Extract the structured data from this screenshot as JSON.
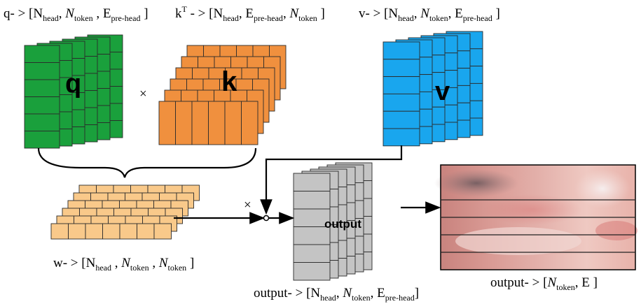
{
  "labels": {
    "q": {
      "prefix": "q- > [N",
      "s1": "head",
      "comma1": ", ",
      "n": "N",
      "s2": "token",
      "comma2": " , E",
      "s3": "pre-head",
      "close": " ]"
    },
    "k": {
      "prefix": "k",
      "sup": "T",
      "mid": " - > [N",
      "s1": "head",
      "comma1": ", E",
      "s2": "pre-head",
      "comma2": ", ",
      "n": "N",
      "s3": "token",
      "close": " ]"
    },
    "v": {
      "prefix": "v- > [N",
      "s1": "head",
      "comma1": ", ",
      "n": "N",
      "s2": "token",
      "comma2": ", E",
      "s3": "pre-head",
      "close": " ]"
    },
    "w": {
      "prefix": "w- > [N",
      "s1": "head",
      "comma1": " , ",
      "n1": "N",
      "s2": "token",
      "comma2": " , ",
      "n2": "N",
      "s3": "token",
      "close": " ]"
    },
    "out_head": {
      "prefix": "output- > [N",
      "s1": "head",
      "comma1": ", ",
      "n": "N",
      "s2": "token",
      "comma2": ", E",
      "s3": "pre-head",
      "close": "]"
    },
    "out_final": {
      "prefix": "output- > [",
      "n": "N",
      "s1": "token",
      "comma1": ", E",
      "close": "  ]"
    }
  },
  "blocks": {
    "q": "q",
    "k": "k",
    "v": "v",
    "output": "output"
  },
  "symbols": {
    "times1": "×",
    "times2": "×"
  },
  "colors": {
    "q": "#1aa03c",
    "k": "#f0903e",
    "v": "#19a6ee",
    "w": "#f9c98a",
    "output": "#c4c4c4"
  }
}
